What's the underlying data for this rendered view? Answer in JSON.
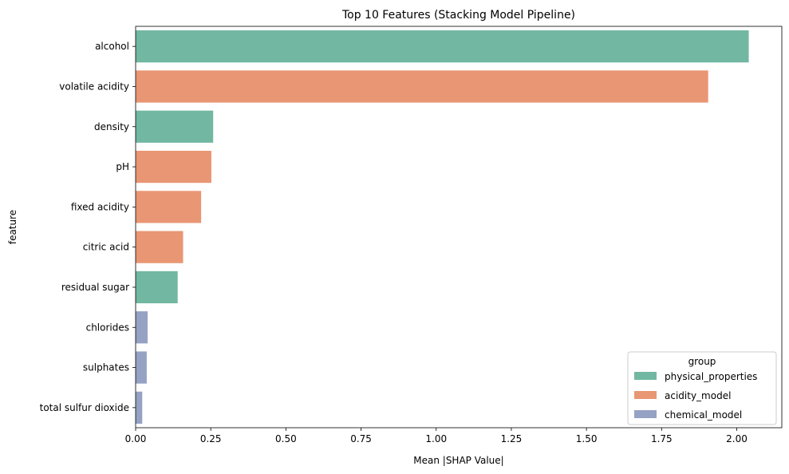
{
  "chart_data": {
    "type": "bar",
    "orientation": "horizontal",
    "title": "Top 10 Features (Stacking Model Pipeline)",
    "xlabel": "Mean |SHAP Value|",
    "ylabel": "feature",
    "xlim": [
      0,
      2.15
    ],
    "xticks": [
      0.0,
      0.25,
      0.5,
      0.75,
      1.0,
      1.25,
      1.5,
      1.75,
      2.0
    ],
    "xtick_labels": [
      "0.00",
      "0.25",
      "0.50",
      "0.75",
      "1.00",
      "1.25",
      "1.50",
      "1.75",
      "2.00"
    ],
    "grid": false,
    "categories": [
      "alcohol",
      "volatile acidity",
      "density",
      "pH",
      "fixed acidity",
      "citric acid",
      "residual sugar",
      "chlorides",
      "sulphates",
      "total sulfur dioxide"
    ],
    "values": [
      2.04,
      1.905,
      0.258,
      0.252,
      0.218,
      0.158,
      0.14,
      0.04,
      0.037,
      0.022
    ],
    "groups": [
      "physical_properties",
      "acidity_model",
      "physical_properties",
      "acidity_model",
      "acidity_model",
      "acidity_model",
      "physical_properties",
      "chemical_model",
      "chemical_model",
      "chemical_model"
    ],
    "legend": {
      "title": "group",
      "placement": "lower-right",
      "entries": [
        {
          "name": "physical_properties",
          "color": "#72b7a1"
        },
        {
          "name": "acidity_model",
          "color": "#e99674"
        },
        {
          "name": "chemical_model",
          "color": "#95a2c4"
        }
      ]
    }
  }
}
